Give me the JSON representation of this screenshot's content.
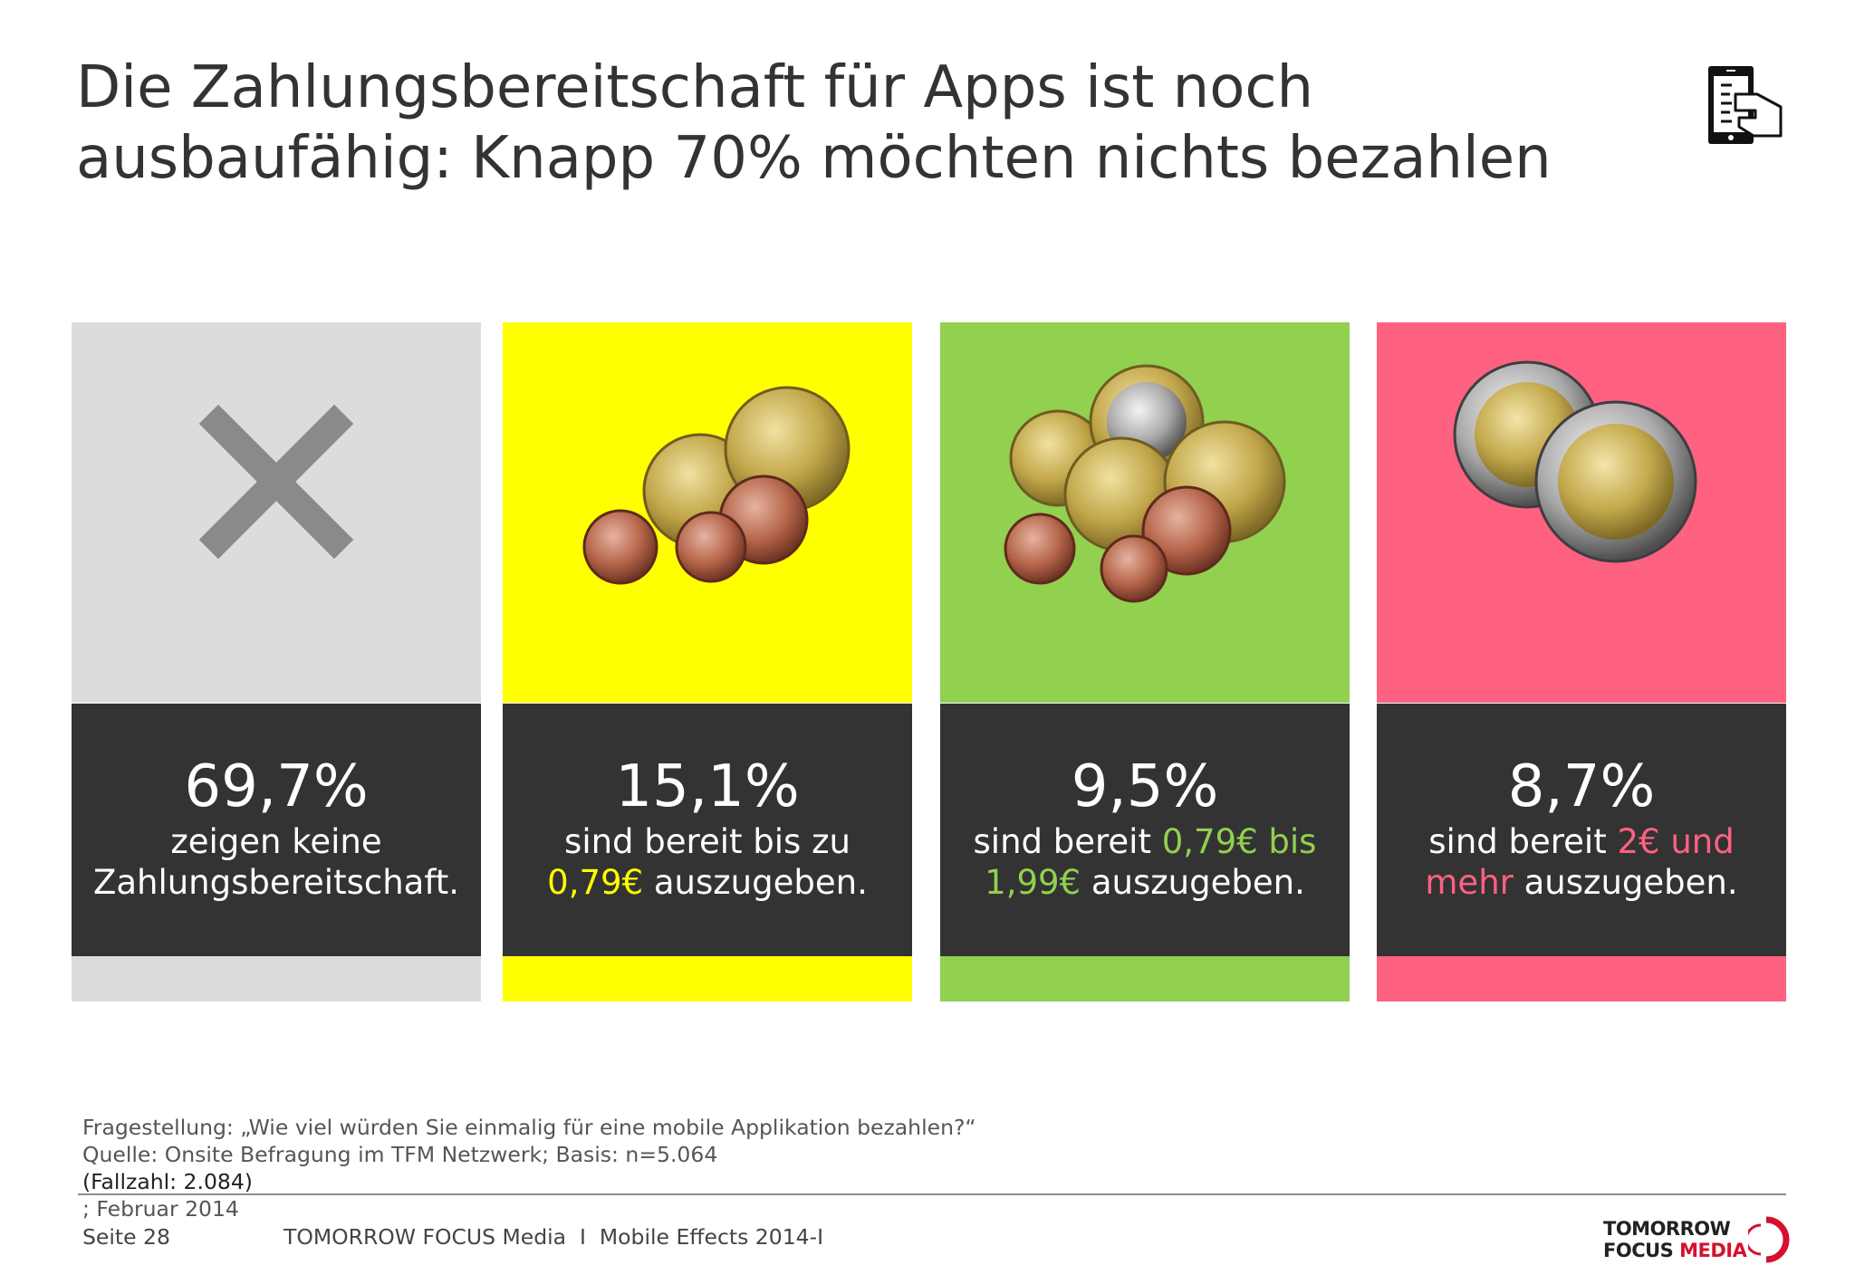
{
  "title": {
    "line1": "Die Zahlungsbereitschaft für Apps ist noch",
    "line2": "ausbaufähig: Knapp 70% möchten nichts bezahlen"
  },
  "icons": {
    "corner": "hand-holding-phone-icon"
  },
  "panels": [
    {
      "color": "#dcdcdc",
      "icon": "cross-icon",
      "percent": "69,7%",
      "desc": {
        "l1a": "zeigen keine",
        "l1hl": "",
        "l1b": "",
        "l2hl": "",
        "l2b": "Zahlungsbereitschaft."
      },
      "accent": "#ffffff"
    },
    {
      "color": "#ffff00",
      "icon": "small-coins-icon",
      "percent": "15,1%",
      "desc": {
        "l1a": "sind bereit bis zu",
        "l1hl": "",
        "l1b": "",
        "l2hl": "0,79€",
        "l2b": " auszugeben."
      },
      "accent": "#ffff00"
    },
    {
      "color": "#92d050",
      "icon": "coins-icon",
      "percent": "9,5%",
      "desc": {
        "l1a": "sind bereit ",
        "l1hl": "0,79€ bis",
        "l1b": "",
        "l2hl": "1,99€",
        "l2b": " auszugeben."
      },
      "accent": "#92d050"
    },
    {
      "color": "#ff6181",
      "icon": "two-euro-coins-icon",
      "percent": "8,7%",
      "desc": {
        "l1a": "sind bereit ",
        "l1hl": "2€ und",
        "l1b": "",
        "l2hl": "mehr",
        "l2b": " auszugeben."
      },
      "accent": "#ff6181"
    }
  ],
  "note": {
    "line1": "Fragestellung: „Wie viel würden Sie einmalig für eine mobile Applikation bezahlen?“",
    "line2a": "Quelle: Onsite Befragung im TFM Netzwerk; Basis: n=5.064 ",
    "line2b": "(Fallzahl: 2.084)",
    "line2c": "; Februar 2014"
  },
  "footer": {
    "page": "Seite 28",
    "text": "TOMORROW FOCUS Media  I  Mobile Effects 2014-I"
  },
  "logo": {
    "line1": "TOMORROW",
    "line2a": "FOCUS ",
    "line2b": "MEDIA"
  }
}
